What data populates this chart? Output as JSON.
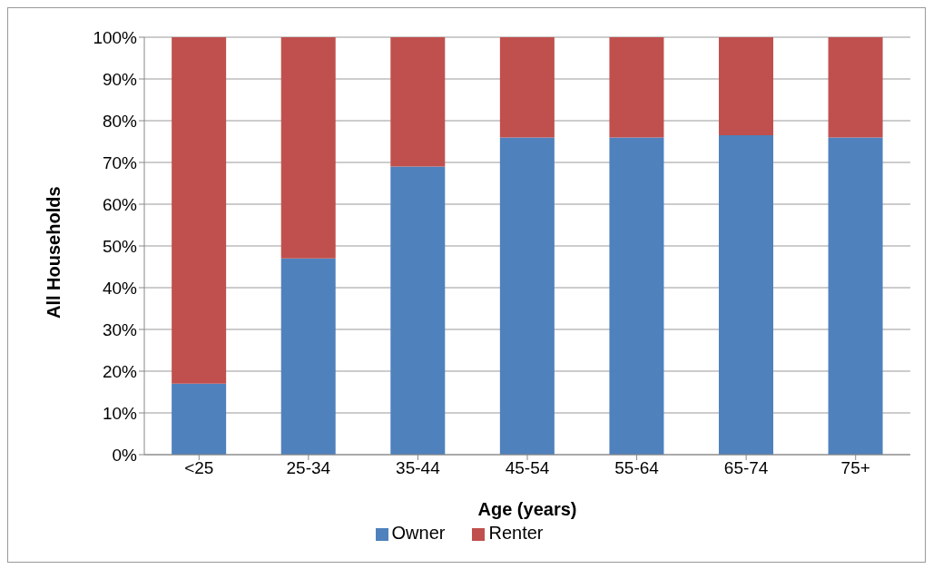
{
  "chart_data": {
    "type": "bar",
    "stacked": true,
    "xlabel": "Age (years)",
    "ylabel": "All Households",
    "categories": [
      "<25",
      "25-34",
      "35-44",
      "45-54",
      "55-64",
      "65-74",
      "75+"
    ],
    "series": [
      {
        "name": "Owner",
        "color": "#4f81bd",
        "values": [
          17,
          47,
          69,
          76,
          76,
          76.5,
          76
        ]
      },
      {
        "name": "Renter",
        "color": "#c0504d",
        "values": [
          83,
          53,
          31,
          24,
          24,
          23.5,
          24
        ]
      }
    ],
    "ylim": [
      0,
      100
    ],
    "yticks": [
      {
        "value": 0,
        "label": "0%"
      },
      {
        "value": 10,
        "label": "10%"
      },
      {
        "value": 20,
        "label": "20%"
      },
      {
        "value": 30,
        "label": "30%"
      },
      {
        "value": 40,
        "label": "40%"
      },
      {
        "value": 50,
        "label": "50%"
      },
      {
        "value": 60,
        "label": "60%"
      },
      {
        "value": 70,
        "label": "70%"
      },
      {
        "value": 80,
        "label": "80%"
      },
      {
        "value": 90,
        "label": "90%"
      },
      {
        "value": 100,
        "label": "100%"
      }
    ],
    "grid": "y",
    "legend": "bottom"
  }
}
